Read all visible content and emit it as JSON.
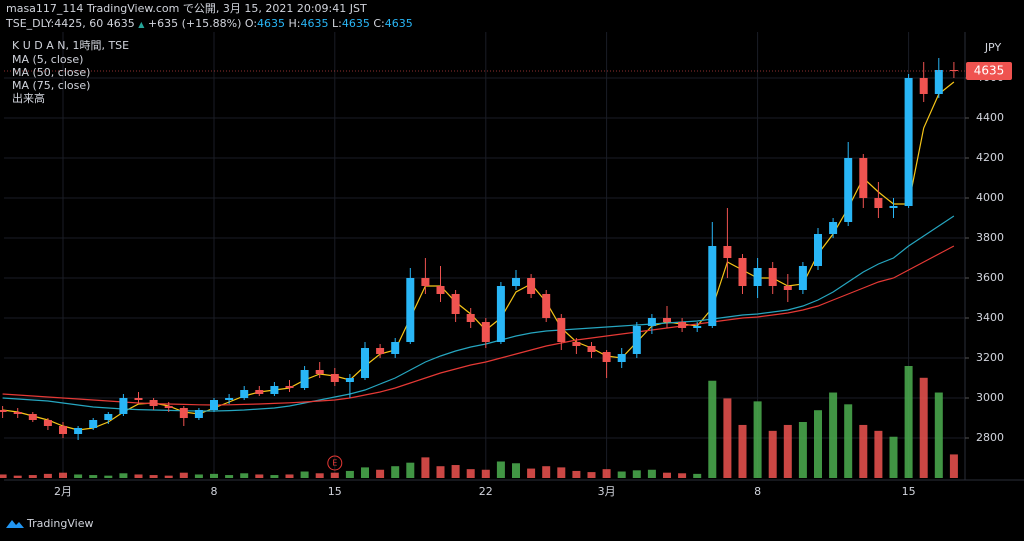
{
  "header": {
    "published": "masa117_114 TradingView.com で公開, 3月 15, 2021 20:09:41 JST",
    "symbol": "TSE_DLY:4425, 60",
    "price": "4635",
    "arrow": "▲",
    "change": "+635 (+15.88%)",
    "ohlc": [
      {
        "label": "O:",
        "value": "4635"
      },
      {
        "label": "H:",
        "value": "4635"
      },
      {
        "label": "L:",
        "value": "4635"
      },
      {
        "label": "C:",
        "value": "4635"
      }
    ]
  },
  "footer": "TradingView",
  "chart_data": {
    "type": "candlestick",
    "title": "K U D A N, 1時間, TSE",
    "currency": "JPY",
    "event_marker": "E",
    "up_color": "#29b6f6",
    "down_color": "#ef5350",
    "volume_up_color": "#4caf50",
    "volume_down_color": "#ef5350",
    "ylim": [
      2600,
      4830
    ],
    "yticks": [
      2800,
      3000,
      3200,
      3400,
      3600,
      3800,
      4000,
      4200,
      4400,
      4600
    ],
    "grid": true,
    "categories": [
      null,
      null,
      null,
      null,
      "2月",
      null,
      null,
      null,
      null,
      null,
      null,
      null,
      null,
      null,
      "8",
      null,
      null,
      null,
      null,
      null,
      null,
      null,
      "15",
      null,
      null,
      null,
      null,
      null,
      null,
      null,
      null,
      null,
      "22",
      null,
      null,
      null,
      null,
      null,
      null,
      null,
      "3月",
      null,
      null,
      null,
      null,
      null,
      null,
      null,
      null,
      null,
      "8",
      null,
      null,
      null,
      null,
      null,
      null,
      null,
      null,
      null,
      "15",
      null,
      null,
      null
    ],
    "open": [
      2940,
      2930,
      2920,
      2890,
      2860,
      2820,
      2850,
      2890,
      2920,
      3000,
      2990,
      2960,
      2950,
      2900,
      2940,
      2990,
      3000,
      3040,
      3020,
      3060,
      3050,
      3140,
      3120,
      3080,
      3100,
      3250,
      3220,
      3280,
      3600,
      3560,
      3520,
      3420,
      3380,
      3280,
      3560,
      3600,
      3520,
      3400,
      3280,
      3260,
      3230,
      3180,
      3220,
      3360,
      3400,
      3380,
      3350,
      3360,
      3760,
      3700,
      3560,
      3650,
      3560,
      3540,
      3660,
      3820,
      3880,
      4200,
      4000,
      3950,
      3960,
      4600,
      4520,
      4640
    ],
    "high": [
      2960,
      2950,
      2930,
      2900,
      2880,
      2860,
      2900,
      2930,
      3020,
      3030,
      3000,
      2980,
      2960,
      2950,
      3000,
      3020,
      3060,
      3060,
      3080,
      3090,
      3160,
      3180,
      3150,
      3120,
      3280,
      3270,
      3300,
      3650,
      3700,
      3660,
      3540,
      3450,
      3400,
      3580,
      3640,
      3620,
      3540,
      3420,
      3300,
      3280,
      3240,
      3250,
      3380,
      3420,
      3460,
      3400,
      3380,
      3880,
      3950,
      3720,
      3700,
      3680,
      3620,
      3680,
      3850,
      3900,
      4280,
      4220,
      4080,
      4000,
      4620,
      4680,
      4700,
      4680
    ],
    "low": [
      2900,
      2900,
      2880,
      2840,
      2800,
      2790,
      2840,
      2870,
      2910,
      2970,
      2940,
      2930,
      2860,
      2890,
      2930,
      2970,
      2990,
      3010,
      3010,
      3030,
      3040,
      3100,
      3060,
      3000,
      3090,
      3200,
      3200,
      3270,
      3520,
      3480,
      3380,
      3350,
      3250,
      3270,
      3540,
      3500,
      3380,
      3240,
      3220,
      3200,
      3100,
      3150,
      3200,
      3320,
      3350,
      3330,
      3330,
      3350,
      3600,
      3520,
      3500,
      3520,
      3480,
      3520,
      3640,
      3800,
      3860,
      3950,
      3900,
      3900,
      3950,
      4480,
      4500,
      4600
    ],
    "close": [
      2930,
      2920,
      2890,
      2860,
      2820,
      2850,
      2890,
      2920,
      3000,
      2990,
      2960,
      2950,
      2900,
      2940,
      2990,
      3000,
      3040,
      3020,
      3060,
      3050,
      3140,
      3120,
      3080,
      3100,
      3250,
      3220,
      3280,
      3600,
      3560,
      3520,
      3420,
      3380,
      3280,
      3560,
      3600,
      3520,
      3400,
      3280,
      3260,
      3230,
      3180,
      3220,
      3360,
      3400,
      3380,
      3350,
      3360,
      3760,
      3700,
      3560,
      3650,
      3560,
      3540,
      3660,
      3820,
      3880,
      4200,
      4000,
      3950,
      3960,
      4600,
      4520,
      4640,
      4635
    ],
    "series": [
      {
        "name": "MA (5, close)",
        "color": "#f5c518",
        "values": [
          2940,
          2930,
          2910,
          2890,
          2860,
          2840,
          2850,
          2880,
          2930,
          2970,
          2975,
          2960,
          2930,
          2920,
          2950,
          2980,
          3010,
          3030,
          3040,
          3050,
          3090,
          3120,
          3110,
          3090,
          3160,
          3220,
          3240,
          3400,
          3560,
          3560,
          3480,
          3420,
          3340,
          3400,
          3530,
          3570,
          3480,
          3350,
          3280,
          3250,
          3210,
          3200,
          3280,
          3360,
          3380,
          3370,
          3360,
          3450,
          3680,
          3640,
          3600,
          3600,
          3560,
          3570,
          3720,
          3820,
          3950,
          4100,
          4030,
          3970,
          3970,
          4350,
          4520,
          4580
        ]
      },
      {
        "name": "MA (50, close)",
        "color": "#26a6c0",
        "values": [
          3000,
          2995,
          2990,
          2985,
          2975,
          2965,
          2955,
          2950,
          2945,
          2942,
          2940,
          2938,
          2936,
          2935,
          2935,
          2937,
          2940,
          2945,
          2950,
          2960,
          2975,
          2990,
          3005,
          3020,
          3040,
          3070,
          3100,
          3140,
          3180,
          3210,
          3235,
          3255,
          3270,
          3290,
          3310,
          3325,
          3335,
          3340,
          3345,
          3350,
          3355,
          3360,
          3365,
          3370,
          3375,
          3380,
          3385,
          3395,
          3405,
          3415,
          3420,
          3430,
          3440,
          3460,
          3490,
          3530,
          3580,
          3630,
          3670,
          3700,
          3760,
          3810,
          3860,
          3910
        ]
      },
      {
        "name": "MA (75, close)",
        "color": "#e53935",
        "values": [
          3020,
          3015,
          3010,
          3005,
          3000,
          2995,
          2990,
          2985,
          2980,
          2975,
          2972,
          2970,
          2968,
          2966,
          2965,
          2966,
          2968,
          2970,
          2973,
          2976,
          2980,
          2985,
          2990,
          3000,
          3015,
          3030,
          3050,
          3075,
          3100,
          3125,
          3145,
          3165,
          3180,
          3200,
          3220,
          3240,
          3260,
          3275,
          3290,
          3300,
          3310,
          3320,
          3330,
          3340,
          3350,
          3360,
          3370,
          3380,
          3390,
          3400,
          3405,
          3415,
          3425,
          3440,
          3460,
          3490,
          3520,
          3550,
          3580,
          3600,
          3640,
          3680,
          3720,
          3760
        ]
      }
    ],
    "volume": {
      "name": "出来高",
      "values": [
        60,
        40,
        50,
        70,
        90,
        60,
        50,
        40,
        80,
        60,
        50,
        40,
        90,
        60,
        70,
        50,
        80,
        60,
        50,
        60,
        110,
        80,
        90,
        120,
        180,
        140,
        200,
        260,
        350,
        200,
        220,
        150,
        140,
        280,
        250,
        160,
        200,
        180,
        120,
        100,
        150,
        110,
        130,
        140,
        90,
        80,
        70,
        1650,
        1350,
        900,
        1300,
        800,
        900,
        950,
        1150,
        1450,
        1250,
        900,
        800,
        700,
        1900,
        1700,
        1450,
        400
      ]
    }
  }
}
